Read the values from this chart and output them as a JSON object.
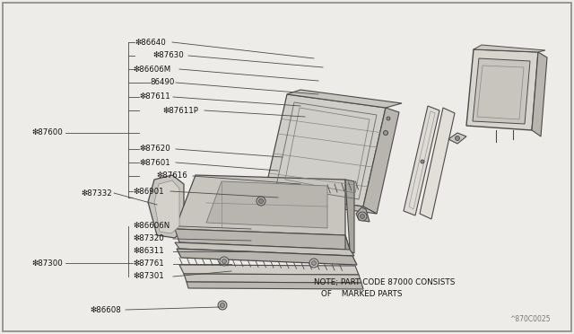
{
  "bg_color": "#eeece8",
  "line_color": "#4a4a4a",
  "label_color": "#111111",
  "watermark": "^870C0025",
  "note_line1": "NOTE; PART CODE 87000 CONSISTS",
  "note_line2": "OF    MARKED PARTS",
  "border_color": "#888888"
}
